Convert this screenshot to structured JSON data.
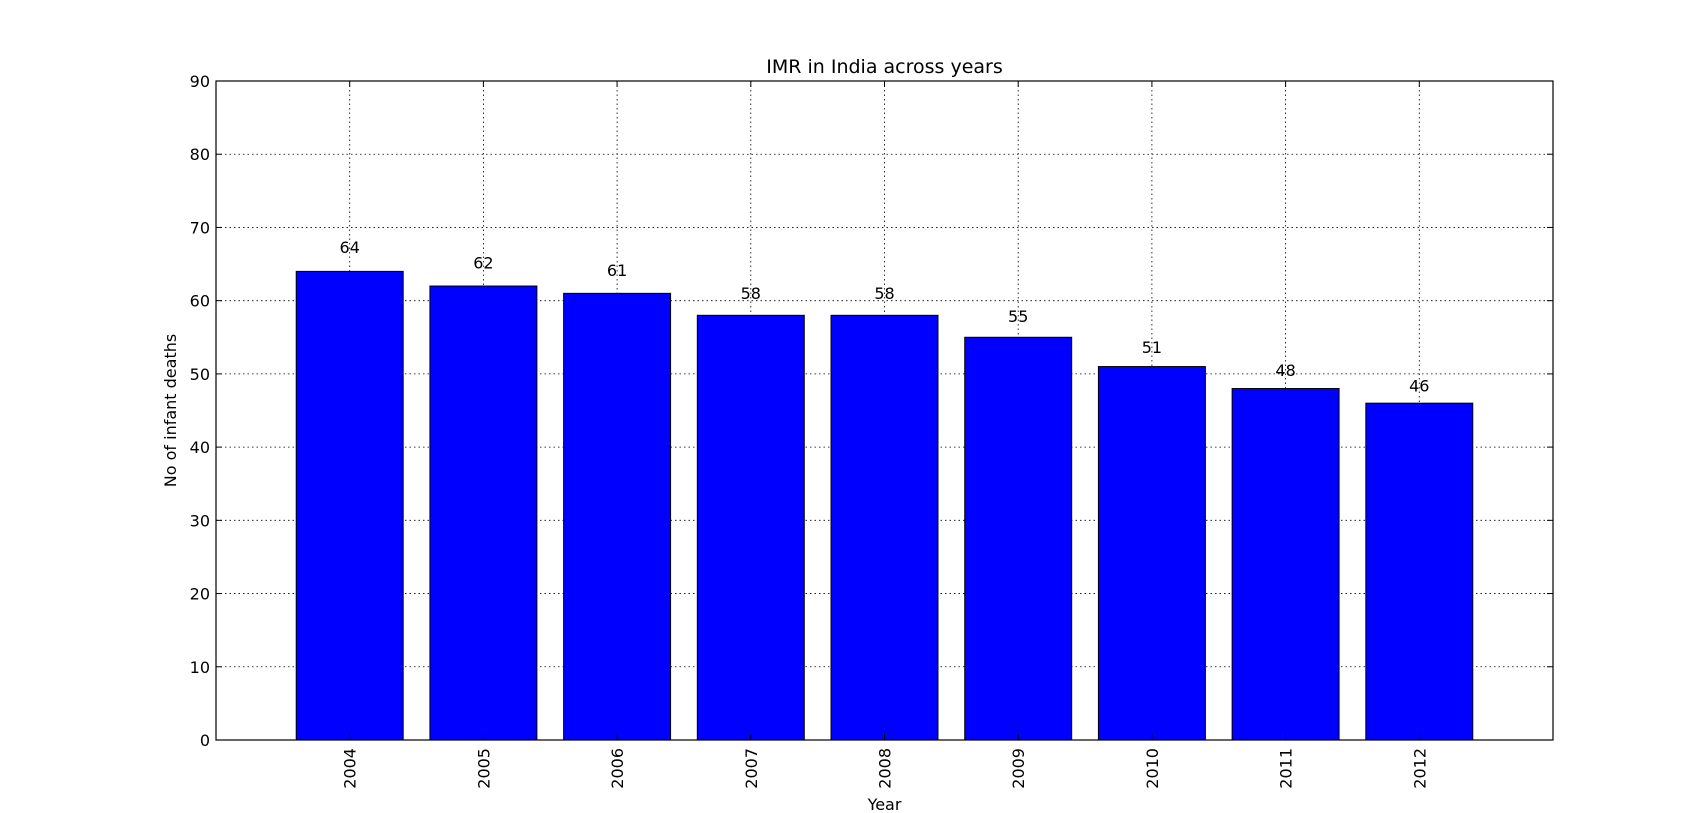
{
  "chart_data": {
    "type": "bar",
    "title": "IMR in India across years",
    "xlabel": "Year",
    "ylabel": "No of infant deaths",
    "categories": [
      "2004",
      "2005",
      "2006",
      "2007",
      "2008",
      "2009",
      "2010",
      "2011",
      "2012"
    ],
    "values": [
      64,
      62,
      61,
      58,
      58,
      55,
      51,
      48,
      46
    ],
    "data_labels": [
      "64",
      "62",
      "61",
      "58",
      "58",
      "55",
      "51",
      "48",
      "46"
    ],
    "ylim": [
      0,
      90
    ],
    "yticks": [
      0,
      10,
      20,
      30,
      40,
      50,
      60,
      70,
      80,
      90
    ],
    "grid": true,
    "bar_color": "#0000ff",
    "edge_color": "#000000",
    "xtick_rotation": "vertical"
  }
}
